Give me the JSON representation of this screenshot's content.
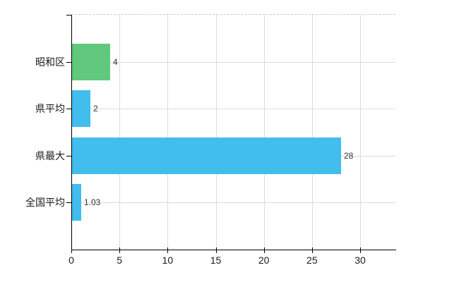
{
  "chart_data": {
    "type": "bar",
    "orientation": "horizontal",
    "title": "",
    "xlabel": "",
    "ylabel": "",
    "categories": [
      "昭和区",
      "県平均",
      "県最大",
      "全国平均"
    ],
    "values": [
      4,
      2,
      28,
      1.03
    ],
    "value_labels": [
      "4",
      "2",
      "28",
      "1.03"
    ],
    "bar_colors": [
      "#61c87d",
      "#41bdee",
      "#41bdee",
      "#41bdee"
    ],
    "xlim": [
      0,
      33.7
    ],
    "xticks": [
      0,
      5,
      10,
      15,
      20,
      25,
      30
    ],
    "grid": true,
    "legend": "none"
  },
  "colors": {
    "axis": "#000000",
    "grid": "#dcdcdc",
    "top_border": "#cccccc",
    "value_label": "#333333",
    "tick_label": "#1a1a1a",
    "background": "#ffffff"
  }
}
